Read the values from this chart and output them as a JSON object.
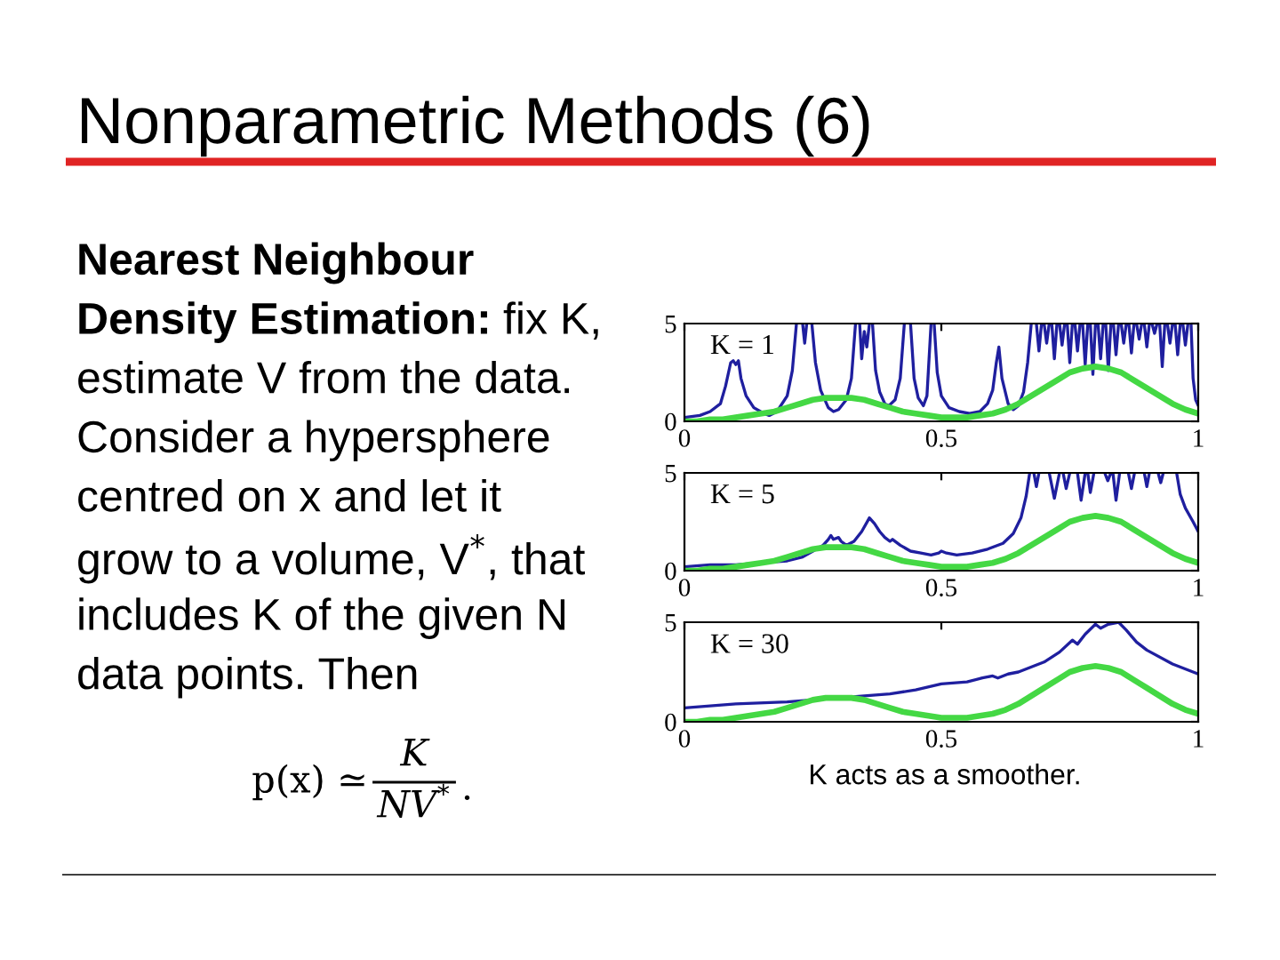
{
  "chart_data": [
    {
      "type": "other",
      "title": "Nonparametric Methods (6)",
      "annotations": [
        "Nearest Neighbour",
        "Density Estimation:",
        "fix K,",
        "estimate V from the data.",
        "Consider a hypersphere",
        "centred on x and let it",
        "grow to a volume, V$^{*}$, that",
        "includes K of the given N",
        "data points. Then",
        "p(x) ≃",
        "K",
        "NV$^{*}$",
        "."
      ]
    },
    {
      "type": "line",
      "xlim": [
        0,
        1
      ],
      "ylim": [
        0,
        5
      ],
      "xticks": [
        0,
        0.5,
        1
      ],
      "yticks": [
        0,
        5
      ],
      "annotations": [
        "K = 1"
      ],
      "series": [
        {
          "color": "#1f1f9f",
          "x": [
            0,
            0.03,
            0.05,
            0.07,
            0.08,
            0.09,
            0.095,
            0.1,
            0.105,
            0.11,
            0.12,
            0.135,
            0.155,
            0.165,
            0.18,
            0.2,
            0.21,
            0.218,
            0.224,
            0.23,
            0.234,
            0.238,
            0.243,
            0.248,
            0.255,
            0.265,
            0.28,
            0.29,
            0.3,
            0.315,
            0.325,
            0.333,
            0.337,
            0.341,
            0.345,
            0.35,
            0.355,
            0.36,
            0.363,
            0.366,
            0.372,
            0.38,
            0.39,
            0.398,
            0.41,
            0.42,
            0.428,
            0.434,
            0.44,
            0.447,
            0.455,
            0.465,
            0.472,
            0.48,
            0.483,
            0.486,
            0.492,
            0.5,
            0.515,
            0.535,
            0.555,
            0.575,
            0.59,
            0.6,
            0.607,
            0.612,
            0.618,
            0.63,
            0.64,
            0.65,
            0.66,
            0.668,
            0.675,
            0.68,
            0.685,
            0.69,
            0.695,
            0.6975,
            0.7,
            0.705,
            0.71,
            0.7125,
            0.715,
            0.72,
            0.725,
            0.7275,
            0.73,
            0.735,
            0.74,
            0.7425,
            0.745,
            0.75,
            0.755,
            0.7575,
            0.76,
            0.765,
            0.77,
            0.7725,
            0.775,
            0.78,
            0.785,
            0.7875,
            0.79,
            0.795,
            0.8,
            0.8025,
            0.805,
            0.81,
            0.815,
            0.8175,
            0.82,
            0.825,
            0.83,
            0.8325,
            0.835,
            0.84,
            0.845,
            0.8475,
            0.85,
            0.855,
            0.86,
            0.8625,
            0.865,
            0.87,
            0.875,
            0.8775,
            0.88,
            0.885,
            0.89,
            0.8925,
            0.895,
            0.9,
            0.905,
            0.9075,
            0.91,
            0.915,
            0.92,
            0.9225,
            0.925,
            0.93,
            0.935,
            0.9375,
            0.94,
            0.945,
            0.95,
            0.9525,
            0.955,
            0.96,
            0.965,
            0.9675,
            0.97,
            0.975,
            0.98,
            0.9825,
            0.986,
            0.99,
            0.995,
            1
          ],
          "values": [
            0.2,
            0.3,
            0.5,
            0.9,
            1.8,
            3.0,
            3.1,
            2.9,
            3.1,
            2.2,
            1.3,
            0.7,
            0.4,
            0.3,
            0.5,
            1.3,
            2.6,
            5,
            null,
            5,
            4.0,
            5,
            null,
            5,
            3.0,
            1.6,
            0.7,
            0.5,
            0.6,
            1.1,
            2.2,
            5,
            null,
            5,
            3.2,
            4.6,
            3.8,
            5,
            null,
            5,
            2.6,
            1.5,
            0.9,
            0.8,
            1.1,
            2.2,
            5,
            null,
            5,
            2.2,
            1.2,
            0.8,
            1.3,
            5,
            null,
            5,
            2.5,
            1.3,
            0.7,
            0.5,
            0.4,
            0.5,
            0.9,
            1.6,
            3.0,
            3.8,
            2.2,
            0.9,
            0.6,
            0.8,
            1.5,
            3.0,
            5,
            null,
            5,
            3.6,
            5,
            null,
            5,
            4.0,
            5,
            null,
            5,
            3.2,
            5,
            null,
            5,
            3.9,
            5,
            null,
            5,
            3.0,
            5,
            null,
            5,
            3.6,
            5,
            null,
            5,
            2.9,
            5,
            null,
            5,
            2.4,
            5,
            null,
            5,
            3.2,
            5,
            null,
            5,
            2.6,
            5,
            null,
            5,
            3.4,
            5,
            null,
            5,
            4.0,
            5,
            null,
            5,
            3.5,
            5,
            null,
            5,
            4.2,
            5,
            null,
            5,
            3.8,
            5,
            null,
            5,
            4.5,
            5,
            null,
            5,
            2.8,
            5,
            null,
            5,
            4.0,
            5,
            null,
            5,
            3.4,
            5,
            null,
            5,
            3.9,
            5,
            null,
            5,
            2.2,
            1.1,
            0.8
          ]
        },
        {
          "color": "#44d844",
          "x": [
            0,
            0.025,
            0.05,
            0.075,
            0.1,
            0.125,
            0.15,
            0.175,
            0.2,
            0.225,
            0.25,
            0.275,
            0.3,
            0.325,
            0.35,
            0.375,
            0.4,
            0.425,
            0.45,
            0.475,
            0.5,
            0.525,
            0.55,
            0.575,
            0.6,
            0.625,
            0.65,
            0.675,
            0.7,
            0.725,
            0.75,
            0.775,
            0.8,
            0.825,
            0.85,
            0.875,
            0.9,
            0.925,
            0.95,
            0.975,
            1
          ],
          "values": [
            0.0,
            0.0,
            0.1,
            0.1,
            0.2,
            0.3,
            0.4,
            0.5,
            0.7,
            0.9,
            1.1,
            1.2,
            1.2,
            1.2,
            1.1,
            0.9,
            0.7,
            0.5,
            0.4,
            0.3,
            0.2,
            0.2,
            0.2,
            0.3,
            0.4,
            0.6,
            0.9,
            1.3,
            1.7,
            2.1,
            2.5,
            2.7,
            2.8,
            2.7,
            2.5,
            2.1,
            1.7,
            1.3,
            0.9,
            0.6,
            0.4
          ]
        }
      ]
    },
    {
      "type": "line",
      "xlim": [
        0,
        1
      ],
      "ylim": [
        0,
        5
      ],
      "xticks": [
        0,
        0.5,
        1
      ],
      "yticks": [
        0,
        5
      ],
      "annotations": [
        "K = 5"
      ],
      "series": [
        {
          "color": "#1f1f9f",
          "x": [
            0,
            0.05,
            0.1,
            0.15,
            0.2,
            0.23,
            0.25,
            0.27,
            0.28,
            0.285,
            0.29,
            0.3,
            0.305,
            0.315,
            0.33,
            0.345,
            0.36,
            0.37,
            0.38,
            0.39,
            0.4,
            0.405,
            0.42,
            0.44,
            0.46,
            0.48,
            0.495,
            0.5,
            0.51,
            0.53,
            0.56,
            0.59,
            0.62,
            0.64,
            0.655,
            0.665,
            0.672,
            0.676,
            0.68,
            0.685,
            0.69,
            0.695,
            0.71,
            0.72,
            0.73,
            0.735,
            0.737,
            0.743,
            0.75,
            0.755,
            0.765,
            0.772,
            0.78,
            0.783,
            0.785,
            0.79,
            0.797,
            0.8,
            0.818,
            0.824,
            0.83,
            0.832,
            0.834,
            0.84,
            0.847,
            0.85,
            0.864,
            0.87,
            0.876,
            0.88,
            0.895,
            0.9,
            0.905,
            0.91,
            0.922,
            0.927,
            0.932,
            0.936,
            0.958,
            0.965,
            0.975,
            0.99,
            1
          ],
          "values": [
            0.2,
            0.3,
            0.3,
            0.4,
            0.5,
            0.7,
            1.0,
            1.3,
            1.6,
            1.8,
            1.6,
            1.7,
            1.5,
            1.3,
            1.5,
            2.0,
            2.7,
            2.4,
            2.0,
            1.7,
            1.5,
            1.6,
            1.3,
            1.0,
            0.9,
            0.8,
            0.9,
            1.0,
            0.9,
            0.8,
            0.9,
            1.1,
            1.4,
            1.9,
            2.7,
            3.8,
            5,
            null,
            5,
            4.3,
            5,
            null,
            5,
            3.7,
            5,
            null,
            5,
            4.2,
            5,
            null,
            5,
            3.6,
            5,
            null,
            5,
            4.0,
            5,
            null,
            5,
            4.6,
            5,
            null,
            5,
            3.6,
            5,
            null,
            5,
            4.2,
            5,
            null,
            5,
            4.3,
            5,
            null,
            5,
            4.5,
            5,
            null,
            5,
            3.9,
            3.2,
            2.5,
            2.0
          ]
        },
        {
          "color": "#44d844",
          "x": [
            0,
            0.025,
            0.05,
            0.075,
            0.1,
            0.125,
            0.15,
            0.175,
            0.2,
            0.225,
            0.25,
            0.275,
            0.3,
            0.325,
            0.35,
            0.375,
            0.4,
            0.425,
            0.45,
            0.475,
            0.5,
            0.525,
            0.55,
            0.575,
            0.6,
            0.625,
            0.65,
            0.675,
            0.7,
            0.725,
            0.75,
            0.775,
            0.8,
            0.825,
            0.85,
            0.875,
            0.9,
            0.925,
            0.95,
            0.975,
            1
          ],
          "values": [
            0.0,
            0.0,
            0.1,
            0.1,
            0.2,
            0.3,
            0.4,
            0.5,
            0.7,
            0.9,
            1.1,
            1.2,
            1.2,
            1.2,
            1.1,
            0.9,
            0.7,
            0.5,
            0.4,
            0.3,
            0.2,
            0.2,
            0.2,
            0.3,
            0.4,
            0.6,
            0.9,
            1.3,
            1.7,
            2.1,
            2.5,
            2.7,
            2.8,
            2.7,
            2.5,
            2.1,
            1.7,
            1.3,
            0.9,
            0.6,
            0.4
          ]
        }
      ]
    },
    {
      "type": "line",
      "xlim": [
        0,
        1
      ],
      "ylim": [
        0,
        5
      ],
      "xticks": [
        0,
        0.5,
        1
      ],
      "yticks": [
        0,
        5
      ],
      "annotations": [
        "K = 30",
        "K acts as a smoother."
      ],
      "series": [
        {
          "color": "#1f1f9f",
          "x": [
            0,
            0.1,
            0.2,
            0.3,
            0.35,
            0.4,
            0.45,
            0.5,
            0.55,
            0.58,
            0.6,
            0.61,
            0.63,
            0.65,
            0.68,
            0.7,
            0.73,
            0.755,
            0.765,
            0.78,
            0.8,
            0.81,
            0.825,
            0.845,
            0.86,
            0.88,
            0.9,
            0.95,
            1
          ],
          "values": [
            0.7,
            0.9,
            1.0,
            1.2,
            1.3,
            1.4,
            1.6,
            1.9,
            2.0,
            2.2,
            2.3,
            2.2,
            2.4,
            2.5,
            2.8,
            3.0,
            3.5,
            4.1,
            3.9,
            4.4,
            4.9,
            4.7,
            4.9,
            5.0,
            4.6,
            4.0,
            3.6,
            2.9,
            2.4
          ]
        },
        {
          "color": "#44d844",
          "x": [
            0,
            0.025,
            0.05,
            0.075,
            0.1,
            0.125,
            0.15,
            0.175,
            0.2,
            0.225,
            0.25,
            0.275,
            0.3,
            0.325,
            0.35,
            0.375,
            0.4,
            0.425,
            0.45,
            0.475,
            0.5,
            0.525,
            0.55,
            0.575,
            0.6,
            0.625,
            0.65,
            0.675,
            0.7,
            0.725,
            0.75,
            0.775,
            0.8,
            0.825,
            0.85,
            0.875,
            0.9,
            0.925,
            0.95,
            0.975,
            1
          ],
          "values": [
            0.0,
            0.0,
            0.1,
            0.1,
            0.2,
            0.3,
            0.4,
            0.5,
            0.7,
            0.9,
            1.1,
            1.2,
            1.2,
            1.2,
            1.1,
            0.9,
            0.7,
            0.5,
            0.4,
            0.3,
            0.2,
            0.2,
            0.2,
            0.3,
            0.4,
            0.6,
            0.9,
            1.3,
            1.7,
            2.1,
            2.5,
            2.7,
            2.8,
            2.7,
            2.5,
            2.1,
            1.7,
            1.3,
            0.9,
            0.6,
            0.4
          ]
        }
      ]
    }
  ]
}
